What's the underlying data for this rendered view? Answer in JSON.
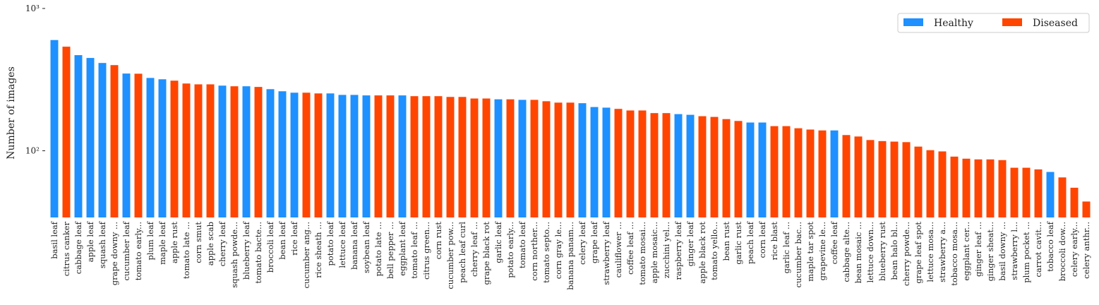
{
  "chart_data": {
    "type": "bar",
    "y_label": "Number of images",
    "log_scale": true,
    "ylim": [
      34,
      1000
    ],
    "yticks": [
      {
        "value": 1000,
        "label": "10³"
      },
      {
        "value": 100,
        "label": "10²"
      }
    ],
    "legend": "upper right",
    "categories": [
      "basil leaf",
      "citrus canker",
      "cabbage leaf",
      "apple leaf",
      "squash leaf",
      "grape downy ...",
      "cucumber leaf",
      "tomato early...",
      "plum leaf",
      "maple leaf",
      "apple rust",
      "tomato late ...",
      "corn smut",
      "apple scab",
      "cherry leaf",
      "squash powde...",
      "blueberry leaf",
      "tomato bacte...",
      "broccoli leaf",
      "bean leaf",
      "rice leaf",
      "cucumber ang...",
      "rice sheath ...",
      "potato leaf",
      "lettuce leaf",
      "banana leaf",
      "soybean leaf",
      "potato late ...",
      "bell pepper ...",
      "eggplant leaf",
      "tomato leaf ...",
      "citrus green...",
      "corn rust",
      "cucumber pow...",
      "peach leaf curl",
      "cherry leaf ...",
      "grape black rot",
      "garlic leaf",
      "potato early...",
      "tomato leaf",
      "corn norther...",
      "tomato septo...",
      "corn gray le...",
      "banana panam...",
      "celery leaf",
      "grape leaf",
      "strawberry leaf",
      "cauliflower ...",
      "coffee leaf ...",
      "tomato mosai...",
      "apple mosaic...",
      "zucchini yel...",
      "raspberry leaf",
      "ginger leaf",
      "apple black rot",
      "tomato yello...",
      "bean rust",
      "garlic rust",
      "peach leaf",
      "corn leaf",
      "rice blast",
      "garlic leaf ...",
      "cucumber bac...",
      "maple tar spot",
      "grapevine le...",
      "coffee leaf",
      "cabbage alte...",
      "bean mosaic ...",
      "lettuce down...",
      "blueberry rust",
      "bean halo bl...",
      "cherry powde...",
      "grape leaf spot",
      "lettuce mosa...",
      "strawberry a...",
      "tobacco mosa...",
      "eggplant cer...",
      "ginger leaf ...",
      "ginger sheat...",
      "basil downy ...",
      "strawberry l...",
      "plum pocket ...",
      "carrot cavit...",
      "tobacco leaf",
      "broccoli dow...",
      "celery early...",
      "celery anthr..."
    ],
    "series": [
      {
        "name": "Healthy",
        "color": "#1e90ff",
        "values": [
          600,
          null,
          470,
          449,
          414,
          null,
          349,
          null,
          325,
          318,
          null,
          null,
          null,
          null,
          287,
          null,
          284,
          null,
          271,
          262,
          256,
          null,
          null,
          253,
          247,
          247,
          245,
          null,
          null,
          245,
          null,
          null,
          null,
          null,
          null,
          null,
          null,
          230,
          null,
          228,
          null,
          null,
          null,
          null,
          216,
          203,
          201,
          null,
          null,
          null,
          null,
          null,
          181,
          179,
          null,
          null,
          null,
          null,
          158,
          158,
          null,
          null,
          null,
          null,
          null,
          139,
          null,
          null,
          null,
          null,
          null,
          null,
          null,
          null,
          null,
          null,
          null,
          null,
          null,
          null,
          null,
          null,
          null,
          71,
          null,
          null,
          null
        ]
      },
      {
        "name": "Diseased",
        "color": "#ff4500",
        "values": [
          null,
          539,
          null,
          null,
          null,
          400,
          null,
          348,
          null,
          null,
          311,
          297,
          293,
          293,
          null,
          284,
          null,
          281,
          null,
          null,
          null,
          256,
          253,
          null,
          null,
          null,
          null,
          245,
          245,
          null,
          242,
          242,
          242,
          239,
          239,
          233,
          233,
          null,
          230,
          null,
          228,
          223,
          218,
          218,
          null,
          null,
          null,
          197,
          192,
          192,
          184,
          184,
          null,
          null,
          175,
          173,
          167,
          162,
          null,
          null,
          149,
          149,
          144,
          141,
          139,
          null,
          129,
          126,
          119,
          117,
          116,
          115,
          107,
          101,
          99,
          91,
          88,
          87,
          87,
          86,
          76,
          76,
          74,
          null,
          65,
          55,
          44
        ]
      }
    ]
  }
}
